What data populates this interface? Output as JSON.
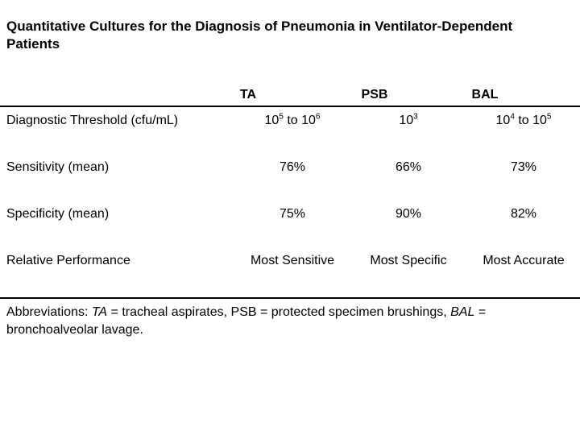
{
  "title": {
    "line1": "Quantitative Cultures for the Diagnosis of Pneumonia in Ventilator-Dependent",
    "line2": "Patients"
  },
  "table": {
    "column_headers": [
      "TA",
      "PSB",
      "BAL"
    ],
    "rows": [
      {
        "label": "Diagnostic Threshold (cfu/mL)",
        "cells": [
          [
            {
              "t": "10"
            },
            {
              "t": "5",
              "sup": true
            },
            {
              "t": " to 10"
            },
            {
              "t": "6",
              "sup": true
            }
          ],
          [
            {
              "t": "10"
            },
            {
              "t": "3",
              "sup": true
            }
          ],
          [
            {
              "t": "10"
            },
            {
              "t": "4",
              "sup": true
            },
            {
              "t": " to 10"
            },
            {
              "t": "5",
              "sup": true
            }
          ]
        ]
      },
      {
        "label": "Sensitivity (mean)",
        "cells": [
          [
            {
              "t": "76%"
            }
          ],
          [
            {
              "t": "66%"
            }
          ],
          [
            {
              "t": "73%"
            }
          ]
        ]
      },
      {
        "label": "Specificity (mean)",
        "cells": [
          [
            {
              "t": "75%"
            }
          ],
          [
            {
              "t": "90%"
            }
          ],
          [
            {
              "t": "82%"
            }
          ]
        ]
      },
      {
        "label": "Relative Performance",
        "cells": [
          [
            {
              "t": "Most Sensitive"
            }
          ],
          [
            {
              "t": "Most Specific"
            }
          ],
          [
            {
              "t": "Most Accurate"
            }
          ]
        ]
      }
    ]
  },
  "footnote": {
    "segments": [
      {
        "t": "Abbreviations: "
      },
      {
        "t": "TA",
        "i": true
      },
      {
        "t": " = tracheal aspirates, PSB = protected specimen brushings, "
      },
      {
        "t": "BAL",
        "i": true
      },
      {
        "t": " ="
      },
      {
        "br": true
      },
      {
        "t": "bronchoalveolar lavage."
      }
    ]
  },
  "colors": {
    "background": "#ffffff",
    "text": "#000000",
    "rule": "#000000"
  }
}
